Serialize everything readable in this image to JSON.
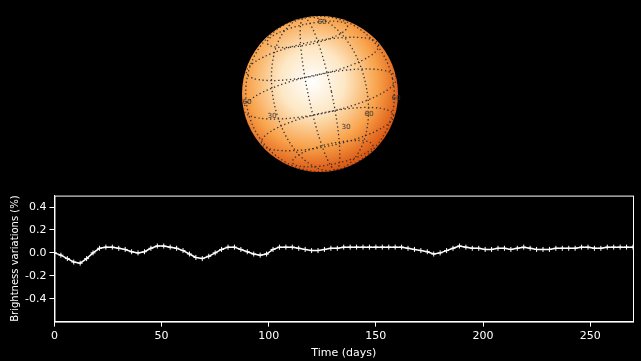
{
  "chart_data": {
    "type": "line",
    "annotations": [
      "60",
      "60",
      "30",
      "30",
      "60",
      "60"
    ],
    "x_label": "Time (days)",
    "y_label": "Brightness variations (%)",
    "x": [
      0,
      3,
      6,
      9,
      12,
      15,
      18,
      21,
      24,
      27,
      30,
      33,
      36,
      39,
      42,
      45,
      48,
      51,
      54,
      57,
      60,
      63,
      66,
      69,
      72,
      75,
      78,
      81,
      84,
      87,
      90,
      93,
      96,
      99,
      102,
      105,
      108,
      111,
      114,
      117,
      120,
      123,
      126,
      129,
      132,
      135,
      138,
      141,
      144,
      147,
      150,
      153,
      156,
      159,
      162,
      165,
      168,
      171,
      174,
      177,
      180,
      183,
      186,
      189,
      192,
      195,
      198,
      201,
      204,
      207,
      210,
      213,
      216,
      219,
      222,
      225,
      228,
      231,
      234,
      237,
      240,
      243,
      246,
      249,
      252,
      255,
      258,
      261,
      264,
      267,
      270
    ],
    "series": [
      {
        "name": "Brightness variations",
        "color": "#ffffff",
        "marker": "plus",
        "line_style": "solid",
        "values": [
          0.0,
          -0.02,
          -0.05,
          -0.08,
          -0.09,
          -0.05,
          0.0,
          0.04,
          0.05,
          0.05,
          0.04,
          0.03,
          0.01,
          0.0,
          0.01,
          0.04,
          0.06,
          0.06,
          0.05,
          0.04,
          0.02,
          -0.01,
          -0.04,
          -0.05,
          -0.03,
          0.0,
          0.03,
          0.05,
          0.05,
          0.03,
          0.01,
          -0.01,
          -0.02,
          -0.01,
          0.03,
          0.05,
          0.05,
          0.05,
          0.04,
          0.03,
          0.02,
          0.02,
          0.03,
          0.04,
          0.04,
          0.05,
          0.05,
          0.05,
          0.05,
          0.05,
          0.05,
          0.05,
          0.05,
          0.05,
          0.05,
          0.04,
          0.03,
          0.02,
          0.01,
          -0.01,
          0.0,
          0.02,
          0.04,
          0.06,
          0.05,
          0.04,
          0.04,
          0.03,
          0.03,
          0.04,
          0.04,
          0.03,
          0.04,
          0.05,
          0.04,
          0.03,
          0.03,
          0.03,
          0.04,
          0.04,
          0.04,
          0.04,
          0.05,
          0.05,
          0.04,
          0.04,
          0.05,
          0.05,
          0.05,
          0.05,
          0.05
        ]
      }
    ],
    "xlim": [
      0,
      270
    ],
    "xticks": [
      0,
      50,
      100,
      150,
      200,
      250
    ],
    "ylim": [
      -0.6,
      0.5
    ],
    "yticks": [
      -0.4,
      -0.2,
      {
        "value": 0,
        "label": "0.0"
      },
      0.2,
      0.4
    ],
    "grid": false,
    "legend": "none"
  }
}
